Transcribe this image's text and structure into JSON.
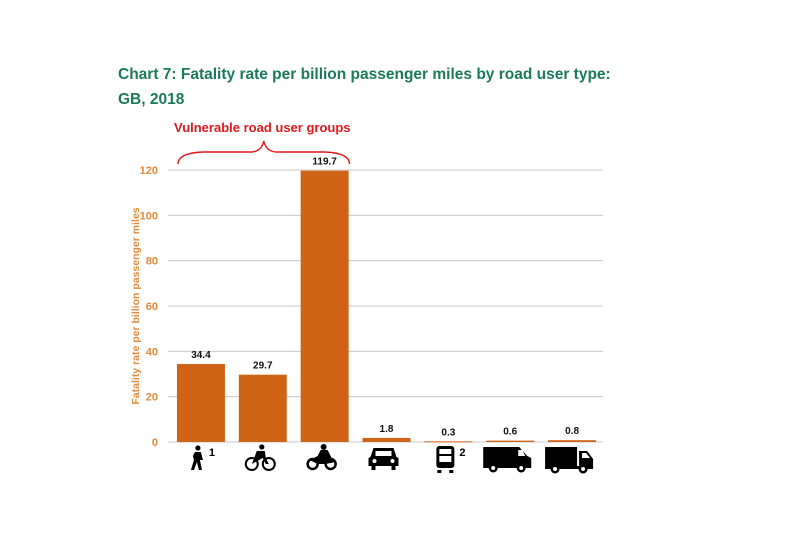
{
  "title_line1": "Chart 7:  Fatality rate per billion passenger miles by road user type:",
  "title_line2": "GB, 2018",
  "annotation": "Vulnerable road user groups",
  "colors": {
    "bar": "#d06416",
    "axis_text": "#e08a3a",
    "title": "#1b7a5c",
    "annotation": "#e0191f",
    "grid": "#c8c8c8"
  },
  "chart_data": {
    "type": "bar",
    "categories": [
      "pedestrian-icon",
      "cyclist-icon",
      "motorcyclist-icon",
      "car-icon",
      "bus-icon",
      "van-icon",
      "truck-icon"
    ],
    "category_superscripts": [
      "1",
      "",
      "",
      "",
      "2",
      "",
      ""
    ],
    "values": [
      34.4,
      29.7,
      119.7,
      1.8,
      0.3,
      0.6,
      0.8
    ],
    "data_labels": [
      "34.4",
      "29.7",
      "119.7",
      "1.8",
      "0.3",
      "0.6",
      "0.8"
    ],
    "ylabel": "Fatality rate per billion passenger miles",
    "ylim": [
      0,
      120
    ],
    "yticks": [
      "0",
      "20",
      "40",
      "60",
      "80",
      "100",
      "120"
    ],
    "grid": true,
    "bracket_over": [
      0,
      2
    ]
  }
}
